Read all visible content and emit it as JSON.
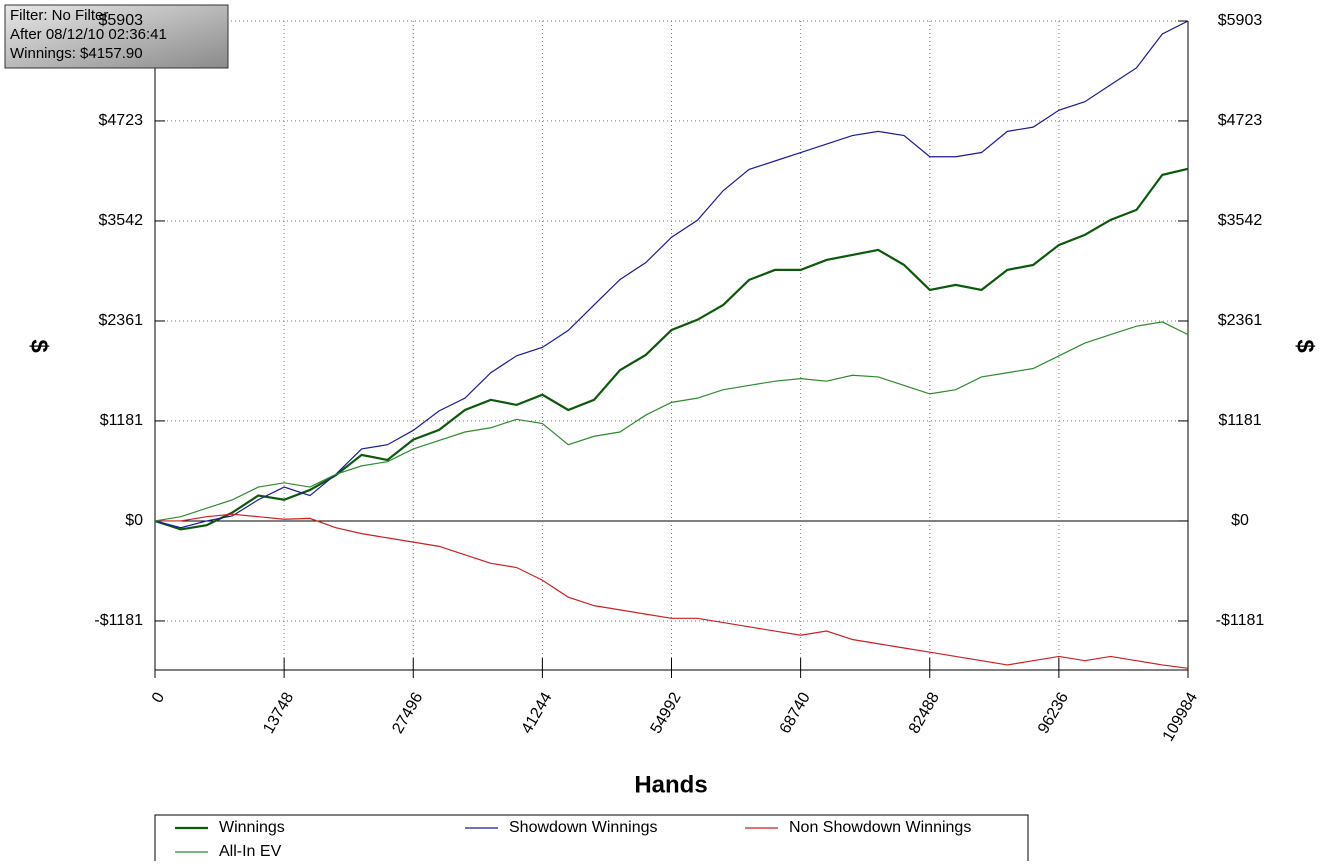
{
  "chart_data": {
    "type": "line",
    "annotations": [
      "Filter: No Filter",
      "After 08/12/10 02:36:41",
      "Winnings: $4157.90"
    ],
    "xlabel": "Hands",
    "ylabel": "$",
    "y2label": "$",
    "xlim": [
      0,
      109984
    ],
    "xticks": [
      0,
      13748,
      27496,
      41244,
      54992,
      68740,
      82488,
      96236,
      109984
    ],
    "ylim": [
      -1760,
      5903
    ],
    "yticks": [
      {
        "value": -1181,
        "label": "-$1181"
      },
      {
        "value": 0,
        "label": "$0"
      },
      {
        "value": 1181,
        "label": "$1181"
      },
      {
        "value": 2361,
        "label": "$2361"
      },
      {
        "value": 3542,
        "label": "$3542"
      },
      {
        "value": 4723,
        "label": "$4723"
      },
      {
        "value": 5903,
        "label": "$5903"
      }
    ],
    "grid": true,
    "legend": "bottom",
    "x": [
      0,
      2750,
      5500,
      8250,
      11000,
      13750,
      16500,
      19250,
      22000,
      24750,
      27500,
      30250,
      33000,
      35750,
      38500,
      41250,
      44000,
      46750,
      49500,
      52250,
      55000,
      57750,
      60500,
      63250,
      66000,
      68750,
      71500,
      74250,
      77000,
      79750,
      82500,
      85250,
      88000,
      90750,
      93500,
      96250,
      99000,
      101750,
      104500,
      107250,
      109984
    ],
    "series": [
      {
        "name": "Winnings",
        "color": "#0b5a0b",
        "values": [
          0,
          -100,
          -50,
          100,
          300,
          250,
          366,
          540,
          780,
          720,
          960,
          1075,
          1310,
          1430,
          1370,
          1490,
          1310,
          1430,
          1780,
          1960,
          2255,
          2375,
          2550,
          2846,
          2964,
          2964,
          3082,
          3141,
          3200,
          3023,
          2728,
          2787,
          2728,
          2964,
          3023,
          3259,
          3378,
          3555,
          3673,
          4086,
          4157.9
        ]
      },
      {
        "name": "Showdown Winnings",
        "color": "#1a1a9c",
        "values": [
          0,
          -80,
          0,
          60,
          250,
          400,
          300,
          550,
          850,
          900,
          1070,
          1300,
          1450,
          1750,
          1950,
          2050,
          2250,
          2550,
          2850,
          3050,
          3350,
          3550,
          3900,
          4150,
          4250,
          4350,
          4450,
          4550,
          4600,
          4550,
          4300,
          4300,
          4350,
          4600,
          4650,
          4850,
          4950,
          5150,
          5350,
          5750,
          5903
        ]
      },
      {
        "name": "Non Showdown Winnings",
        "color": "#cc2020",
        "values": [
          0,
          0,
          50,
          80,
          50,
          20,
          30,
          -80,
          -150,
          -200,
          -250,
          -300,
          -400,
          -500,
          -550,
          -700,
          -900,
          -1000,
          -1050,
          -1100,
          -1150,
          -1150,
          -1200,
          -1250,
          -1300,
          -1350,
          -1300,
          -1400,
          -1450,
          -1500,
          -1550,
          -1600,
          -1650,
          -1700,
          -1650,
          -1600,
          -1650,
          -1600,
          -1650,
          -1700,
          -1740
        ]
      },
      {
        "name": "All-In EV",
        "color": "#2e8b2e",
        "values": [
          0,
          50,
          150,
          250,
          400,
          450,
          400,
          550,
          650,
          700,
          850,
          950,
          1050,
          1100,
          1200,
          1150,
          900,
          1000,
          1050,
          1250,
          1400,
          1450,
          1550,
          1600,
          1650,
          1680,
          1650,
          1720,
          1700,
          1600,
          1500,
          1550,
          1700,
          1750,
          1800,
          1950,
          2100,
          2200,
          2300,
          2350,
          2200
        ]
      }
    ]
  }
}
